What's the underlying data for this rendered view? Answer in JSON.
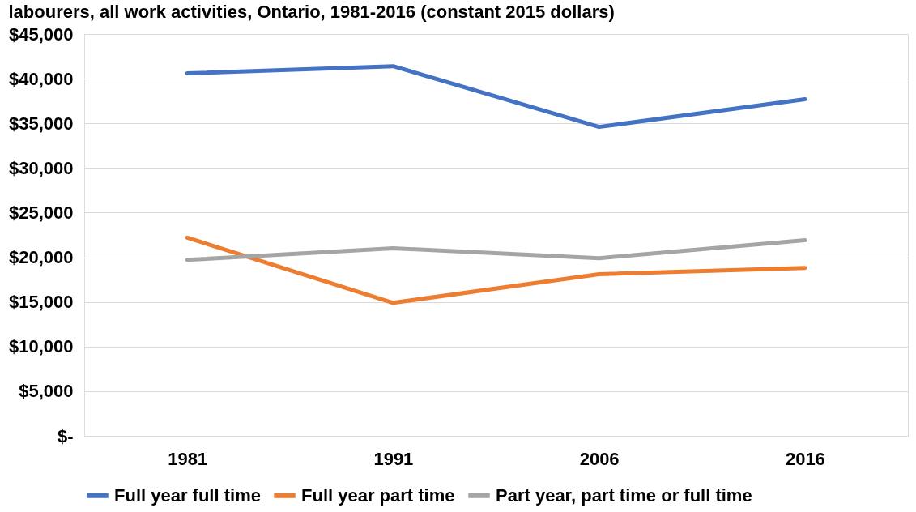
{
  "chart_data": {
    "type": "line",
    "title": "labourers, all work activities, Ontario, 1981-2016 (constant 2015 dollars)",
    "categories": [
      "1981",
      "1991",
      "2006",
      "2016"
    ],
    "series": [
      {
        "name": "Full year full time",
        "color": "#4472c4",
        "values": [
          40600,
          41400,
          34600,
          37700
        ]
      },
      {
        "name": "Full year part time",
        "color": "#ed7d31",
        "values": [
          22200,
          14900,
          18100,
          18800
        ]
      },
      {
        "name": "Part year, part time or full time",
        "color": "#a5a5a5",
        "values": [
          19700,
          21000,
          19900,
          21900
        ]
      }
    ],
    "ylim": [
      0,
      45000
    ],
    "yticks": [
      {
        "value": 0,
        "label": "$-"
      },
      {
        "value": 5000,
        "label": "$5,000"
      },
      {
        "value": 10000,
        "label": "$10,000"
      },
      {
        "value": 15000,
        "label": "$15,000"
      },
      {
        "value": 20000,
        "label": "$20,000"
      },
      {
        "value": 25000,
        "label": "$25,000"
      },
      {
        "value": 30000,
        "label": "$30,000"
      },
      {
        "value": 35000,
        "label": "$35,000"
      },
      {
        "value": 40000,
        "label": "$40,000"
      },
      {
        "value": 45000,
        "label": "$45,000"
      }
    ],
    "grid": "y",
    "legend": "bottom",
    "marker": "none",
    "line_style": "solid"
  }
}
